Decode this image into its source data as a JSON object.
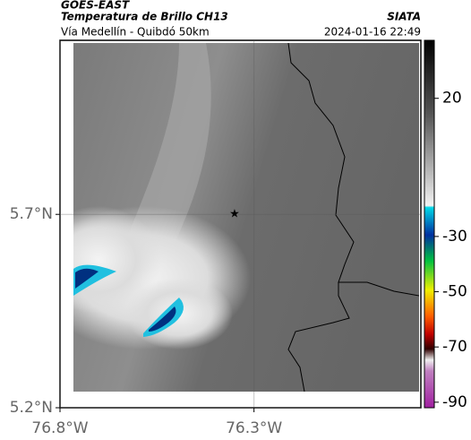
{
  "header": {
    "source": "GOES-EAST",
    "product": "Temperatura de Brillo CH13",
    "agency": "SIATA",
    "region": "Vía Medellín - Quibdó 50km",
    "datetime": "2024-01-16 22:49"
  },
  "map": {
    "lonlim": [
      -76.8,
      -75.87
    ],
    "latlim": [
      5.2,
      6.15
    ],
    "lon_ticks": [
      {
        "value": -76.8,
        "label": "76.8°W"
      },
      {
        "value": -76.3,
        "label": "76.3°W"
      }
    ],
    "lat_ticks": [
      {
        "value": 5.7,
        "label": "5.7°N"
      },
      {
        "value": 5.2,
        "label": "5.2°N"
      }
    ],
    "marker": {
      "lon": -76.35,
      "lat": 5.7
    }
  },
  "colorbar": {
    "lim": [
      41,
      -92
    ],
    "ticks": [
      20,
      -30,
      -50,
      -70,
      -90
    ]
  }
}
